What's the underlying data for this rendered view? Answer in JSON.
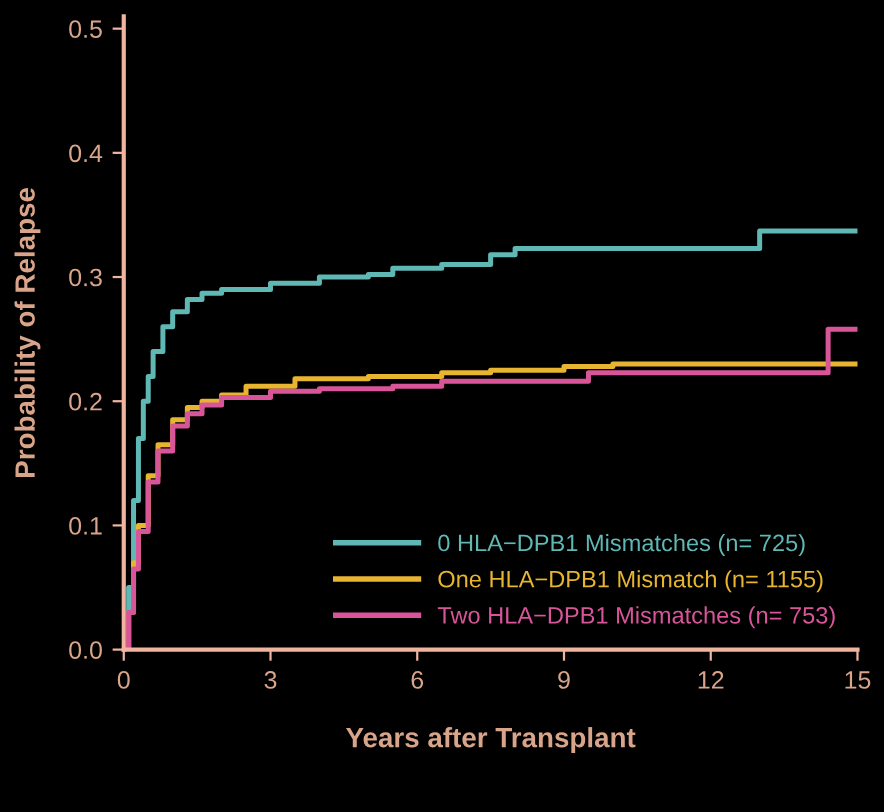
{
  "chart_data": {
    "type": "step",
    "xlabel": "Years after Transplant",
    "ylabel": "Probability of Relapse",
    "xlim": [
      0,
      15
    ],
    "ylim": [
      0,
      0.51
    ],
    "xticks": [
      0,
      3,
      6,
      9,
      12,
      15
    ],
    "yticks": [
      {
        "value": 0,
        "label": "0.0"
      },
      0.1,
      0.2,
      0.3,
      0.4,
      0.5
    ],
    "grid": false,
    "legend": "bottom right",
    "marker": "none",
    "line_style": "solid",
    "series": [
      {
        "name": "0 HLA−DPB1 Mismatches (n= 725)",
        "color": "#5fb8b4",
        "x": [
          0,
          0.1,
          0.2,
          0.3,
          0.4,
          0.5,
          0.6,
          0.8,
          1,
          1.3,
          1.6,
          2,
          3,
          4,
          5,
          5.5,
          6.5,
          7.5,
          8,
          10,
          13,
          15
        ],
        "values": [
          0,
          0.05,
          0.12,
          0.17,
          0.2,
          0.22,
          0.24,
          0.26,
          0.272,
          0.282,
          0.287,
          0.29,
          0.295,
          0.3,
          0.302,
          0.307,
          0.31,
          0.318,
          0.323,
          0.323,
          0.337,
          0.337
        ]
      },
      {
        "name": "One HLA−DPB1 Mismatch (n= 1155)",
        "color": "#e8b530",
        "x": [
          0,
          0.1,
          0.2,
          0.3,
          0.5,
          0.7,
          1,
          1.3,
          1.6,
          2,
          2.5,
          3.5,
          5,
          6.5,
          7.5,
          9,
          10,
          15
        ],
        "values": [
          0,
          0.03,
          0.07,
          0.1,
          0.14,
          0.165,
          0.185,
          0.195,
          0.2,
          0.205,
          0.212,
          0.218,
          0.22,
          0.223,
          0.225,
          0.228,
          0.23,
          0.23
        ]
      },
      {
        "name": "Two HLA−DPB1 Mismatches (n= 753)",
        "color": "#d9559a",
        "x": [
          0,
          0.1,
          0.2,
          0.3,
          0.5,
          0.7,
          1,
          1.3,
          1.6,
          2,
          3,
          4,
          5.5,
          6.5,
          9.5,
          14.4,
          15
        ],
        "values": [
          0,
          0.03,
          0.065,
          0.095,
          0.135,
          0.16,
          0.18,
          0.19,
          0.197,
          0.203,
          0.208,
          0.21,
          0.212,
          0.216,
          0.223,
          0.258,
          0.258
        ]
      }
    ]
  }
}
